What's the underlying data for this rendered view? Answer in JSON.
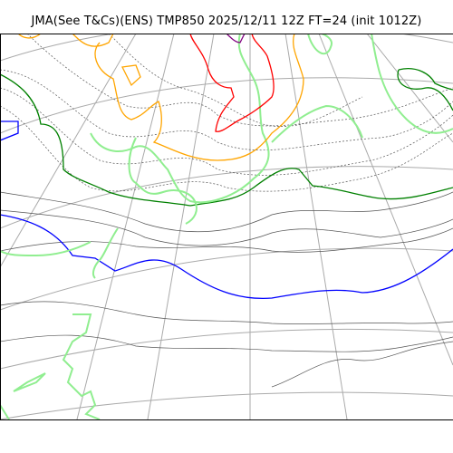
{
  "title": "JMA(See T&Cs)(ENS) TMP850 2025/12/11 12Z FT=24 (init 1012Z)",
  "map": {
    "layers": [
      {
        "name": "coastline",
        "color": "#000000"
      },
      {
        "name": "graticule",
        "color": "#aaaaaa"
      },
      {
        "name": "isobars",
        "color": "#555555"
      },
      {
        "name": "isotherm-blue",
        "color": "#0000ff"
      },
      {
        "name": "isotherm-green",
        "color": "#008000"
      },
      {
        "name": "isotherm-lightgreen",
        "color": "#90ee90"
      },
      {
        "name": "isotherm-orange",
        "color": "#ffa500"
      },
      {
        "name": "isotherm-red",
        "color": "#ff0000"
      },
      {
        "name": "isotherm-purple",
        "color": "#800080"
      }
    ]
  }
}
